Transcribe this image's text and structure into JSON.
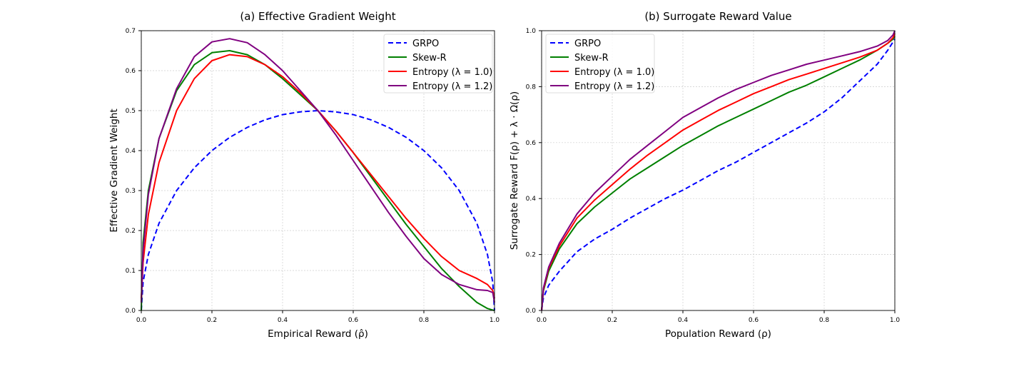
{
  "chart_data": [
    {
      "type": "line",
      "title": "(a) Effective Gradient Weight",
      "xlabel": "Empirical Reward (ρ̂)",
      "ylabel": "Effective Gradient Weight",
      "xlim": [
        0,
        1
      ],
      "ylim": [
        0,
        0.7
      ],
      "xticks": [
        "0.0",
        "0.2",
        "0.4",
        "0.6",
        "0.8",
        "1.0"
      ],
      "yticks": [
        "0.0",
        "0.1",
        "0.2",
        "0.3",
        "0.4",
        "0.5",
        "0.6",
        "0.7"
      ],
      "grid": true,
      "legend": "top-right",
      "x": [
        0,
        0.005,
        0.02,
        0.05,
        0.1,
        0.15,
        0.2,
        0.25,
        0.3,
        0.35,
        0.4,
        0.45,
        0.5,
        0.55,
        0.6,
        0.65,
        0.7,
        0.75,
        0.8,
        0.85,
        0.9,
        0.95,
        0.98,
        0.995,
        1
      ],
      "series": [
        {
          "name": "GRPO",
          "color": "#0000ff",
          "dashed": true,
          "values": [
            0,
            0.071,
            0.14,
            0.218,
            0.3,
            0.357,
            0.4,
            0.433,
            0.458,
            0.477,
            0.49,
            0.497,
            0.5,
            0.497,
            0.49,
            0.477,
            0.458,
            0.433,
            0.4,
            0.357,
            0.3,
            0.218,
            0.14,
            0.071,
            0
          ]
        },
        {
          "name": "Skew-R",
          "color": "#008000",
          "dashed": false,
          "values": [
            0,
            0.17,
            0.3,
            0.43,
            0.55,
            0.615,
            0.645,
            0.65,
            0.64,
            0.615,
            0.58,
            0.54,
            0.5,
            0.45,
            0.395,
            0.335,
            0.275,
            0.215,
            0.16,
            0.105,
            0.06,
            0.02,
            0.005,
            0.001,
            0
          ]
        },
        {
          "name": "Entropy (λ = 1.0)",
          "color": "#ff0000",
          "dashed": false,
          "values": [
            0.03,
            0.12,
            0.24,
            0.37,
            0.5,
            0.58,
            0.625,
            0.64,
            0.635,
            0.615,
            0.585,
            0.545,
            0.5,
            0.45,
            0.395,
            0.34,
            0.285,
            0.23,
            0.18,
            0.135,
            0.1,
            0.08,
            0.065,
            0.05,
            0.03
          ]
        },
        {
          "name": "Entropy (λ = 1.2)",
          "color": "#800080",
          "dashed": false,
          "values": [
            0.02,
            0.15,
            0.29,
            0.43,
            0.555,
            0.635,
            0.672,
            0.68,
            0.67,
            0.64,
            0.6,
            0.55,
            0.5,
            0.44,
            0.375,
            0.31,
            0.245,
            0.185,
            0.13,
            0.09,
            0.065,
            0.052,
            0.05,
            0.045,
            0.02
          ]
        }
      ]
    },
    {
      "type": "line",
      "title": "(b) Surrogate Reward Value",
      "xlabel": "Population Reward (ρ)",
      "ylabel": "Surrogate Reward F(ρ) + λ · Ω(ρ)",
      "xlim": [
        0,
        1
      ],
      "ylim": [
        0,
        1
      ],
      "xticks": [
        "0.0",
        "0.2",
        "0.4",
        "0.6",
        "0.8",
        "1.0"
      ],
      "yticks": [
        "0.0",
        "0.2",
        "0.4",
        "0.6",
        "0.8",
        "1.0"
      ],
      "grid": true,
      "legend": "top-left",
      "x": [
        0,
        0.005,
        0.02,
        0.05,
        0.1,
        0.15,
        0.2,
        0.25,
        0.3,
        0.35,
        0.4,
        0.45,
        0.5,
        0.55,
        0.6,
        0.65,
        0.7,
        0.75,
        0.8,
        0.85,
        0.9,
        0.95,
        0.98,
        0.995,
        1
      ],
      "series": [
        {
          "name": "GRPO",
          "color": "#0000ff",
          "dashed": true,
          "values": [
            0,
            0.045,
            0.09,
            0.14,
            0.21,
            0.255,
            0.29,
            0.33,
            0.365,
            0.4,
            0.43,
            0.465,
            0.5,
            0.53,
            0.565,
            0.6,
            0.635,
            0.67,
            0.71,
            0.76,
            0.82,
            0.88,
            0.93,
            0.96,
            0.97
          ]
        },
        {
          "name": "Skew-R",
          "color": "#008000",
          "dashed": false,
          "values": [
            0,
            0.07,
            0.14,
            0.22,
            0.31,
            0.37,
            0.42,
            0.47,
            0.51,
            0.55,
            0.59,
            0.625,
            0.66,
            0.69,
            0.72,
            0.75,
            0.78,
            0.805,
            0.835,
            0.865,
            0.895,
            0.93,
            0.955,
            0.97,
            0.98
          ]
        },
        {
          "name": "Entropy (λ = 1.0)",
          "color": "#ff0000",
          "dashed": false,
          "values": [
            0,
            0.075,
            0.15,
            0.23,
            0.33,
            0.395,
            0.45,
            0.505,
            0.555,
            0.6,
            0.645,
            0.68,
            0.715,
            0.745,
            0.775,
            0.8,
            0.825,
            0.845,
            0.865,
            0.885,
            0.905,
            0.93,
            0.955,
            0.975,
            0.99
          ]
        },
        {
          "name": "Entropy (λ = 1.2)",
          "color": "#800080",
          "dashed": false,
          "values": [
            0,
            0.08,
            0.155,
            0.24,
            0.345,
            0.42,
            0.48,
            0.54,
            0.59,
            0.64,
            0.69,
            0.725,
            0.76,
            0.79,
            0.815,
            0.84,
            0.86,
            0.88,
            0.895,
            0.91,
            0.925,
            0.945,
            0.965,
            0.985,
            1.0
          ]
        }
      ]
    }
  ]
}
